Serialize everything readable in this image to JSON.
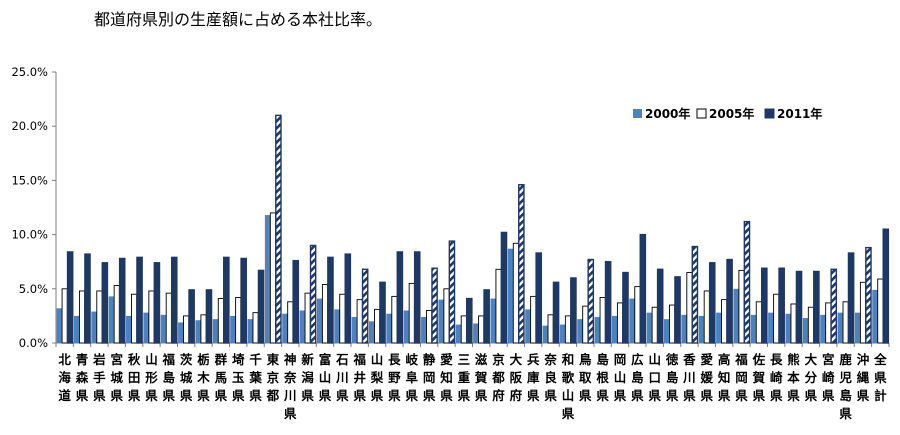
{
  "chart_data": {
    "type": "bar",
    "title": "都道府県別の生産額に占める本社比率。",
    "categories": [
      "北海道",
      "青森県",
      "岩手県",
      "宮城県",
      "秋田県",
      "山形県",
      "福島県",
      "茨城県",
      "栃木県",
      "群馬県",
      "埼玉県",
      "千葉県",
      "東京都",
      "神奈川県",
      "新潟県",
      "富山県",
      "石川県",
      "福井県",
      "山梨県",
      "長野県",
      "岐阜県",
      "静岡県",
      "愛知県",
      "三重県",
      "滋賀県",
      "京都府",
      "大阪府",
      "兵庫県",
      "奈良県",
      "和歌山県",
      "鳥取県",
      "島根県",
      "岡山県",
      "広島県",
      "山口県",
      "徳島県",
      "香川県",
      "愛媛県",
      "高知県",
      "福岡県",
      "佐賀県",
      "長崎県",
      "熊本県",
      "大分県",
      "宮崎県",
      "鹿児島県",
      "沖縄県",
      "全県計"
    ],
    "series": [
      {
        "name": "2000年",
        "color": "#4f81bd",
        "style": "solid",
        "values": [
          3.2,
          2.5,
          2.9,
          4.3,
          2.5,
          2.8,
          2.6,
          1.9,
          2.1,
          2.2,
          2.5,
          2.2,
          11.8,
          2.7,
          3.0,
          4.1,
          3.1,
          2.4,
          2.0,
          2.7,
          3.0,
          2.4,
          4.0,
          1.7,
          1.8,
          4.1,
          8.7,
          3.1,
          1.6,
          1.7,
          2.2,
          2.4,
          2.5,
          4.1,
          2.8,
          2.2,
          2.6,
          2.5,
          2.8,
          5.0,
          2.6,
          2.8,
          2.7,
          2.3,
          2.6,
          2.8,
          2.8,
          4.9
        ]
      },
      {
        "name": "2005年",
        "color": "#ffffff",
        "style": "outline",
        "values": [
          5.0,
          4.8,
          4.8,
          5.3,
          4.5,
          4.8,
          4.6,
          2.5,
          2.6,
          4.1,
          4.2,
          2.8,
          12.0,
          3.8,
          4.6,
          5.4,
          4.5,
          4.0,
          3.1,
          4.3,
          5.5,
          3.0,
          5.0,
          2.5,
          2.5,
          6.8,
          9.2,
          4.3,
          2.6,
          2.5,
          3.4,
          4.2,
          3.7,
          5.2,
          3.3,
          3.5,
          6.5,
          4.8,
          4.0,
          6.7,
          3.8,
          4.5,
          3.6,
          3.3,
          3.7,
          3.8,
          5.6,
          5.9
        ]
      },
      {
        "name": "2011年",
        "color": "#1f3864",
        "style": "solid",
        "values": [
          8.4,
          8.2,
          7.4,
          7.8,
          7.9,
          7.4,
          7.9,
          4.9,
          4.9,
          7.9,
          7.8,
          6.7,
          21.0,
          7.6,
          9.0,
          7.9,
          8.2,
          6.8,
          5.6,
          8.4,
          8.4,
          6.9,
          9.4,
          4.1,
          4.9,
          10.2,
          14.6,
          8.3,
          5.6,
          6.0,
          7.7,
          7.5,
          6.5,
          10.0,
          6.8,
          6.1,
          8.9,
          7.4,
          7.7,
          11.2,
          6.9,
          6.9,
          6.6,
          6.6,
          6.8,
          8.3,
          8.8,
          10.5
        ]
      }
    ],
    "hatched_2011": [
      "東京都",
      "新潟県",
      "福井県",
      "静岡県",
      "愛知県",
      "大阪府",
      "鳥取県",
      "香川県",
      "福岡県",
      "宮崎県",
      "沖縄県"
    ],
    "yaxis": {
      "min": 0,
      "max": 25,
      "step": 5,
      "tick_labels": [
        "0.0%",
        "5.0%",
        "10.0%",
        "15.0%",
        "20.0%",
        "25.0%"
      ]
    },
    "grid": false,
    "legend_position": "top-right"
  }
}
